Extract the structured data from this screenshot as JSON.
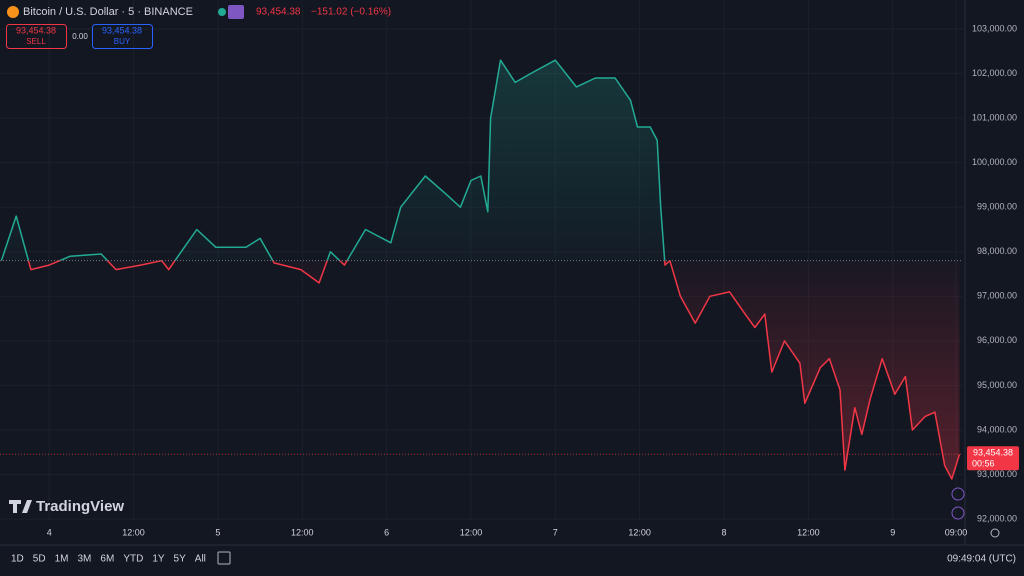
{
  "header": {
    "symbol": "Bitcoin / U.S. Dollar · 5 · BINANCE",
    "last": "93,454.38",
    "change": "−151.02 (−0.16%)"
  },
  "trade": {
    "sell_price": "93,454.38",
    "sell": "SELL",
    "spread": "0.00",
    "buy_price": "93,454.38",
    "buy": "BUY"
  },
  "logo": "TradingView",
  "toolbar": {
    "ranges": [
      "1D",
      "5D",
      "1M",
      "3M",
      "6M",
      "YTD",
      "1Y",
      "5Y",
      "All"
    ],
    "clock": "09:49:04 (UTC)"
  },
  "chart_data": {
    "type": "line",
    "x": [
      -6.8,
      -4.7,
      -2.6,
      0,
      3,
      7.4,
      9.5,
      13,
      16,
      17,
      21,
      23.7,
      28,
      30,
      32,
      35.8,
      38.4,
      40,
      42,
      45,
      48.6,
      50,
      53.5,
      56.4,
      58.5,
      60,
      61.4,
      62.4,
      62.8,
      64.2,
      66.3,
      68.5,
      72,
      75,
      77.7,
      80.5,
      82.7,
      83.7,
      85.5,
      86.5,
      87,
      87.6,
      88.3,
      89.8,
      91.9,
      94,
      96.8,
      99,
      100.4,
      101.8,
      102.8,
      104.6,
      106.8,
      107.5,
      109.7,
      111,
      112.5,
      113.2,
      114.6,
      115.6,
      116.8,
      118.5,
      120.3,
      121.8,
      122.8,
      124.6,
      126,
      127.4,
      128.4,
      129.5
    ],
    "values": [
      97800,
      98800,
      97600,
      97700,
      97900,
      97950,
      97600,
      97700,
      97800,
      97600,
      98500,
      98100,
      98100,
      98300,
      97750,
      97600,
      97300,
      98000,
      97700,
      98500,
      98200,
      99000,
      99700,
      99300,
      99000,
      99600,
      99700,
      98900,
      101000,
      102300,
      101800,
      102000,
      102300,
      101700,
      101900,
      101900,
      101400,
      100800,
      100800,
      100500,
      99000,
      97700,
      97800,
      97000,
      96400,
      97000,
      97100,
      96600,
      96300,
      96600,
      95300,
      96000,
      95500,
      94600,
      95400,
      95600,
      94900,
      93100,
      94500,
      93900,
      94700,
      95600,
      94800,
      95200,
      94000,
      94300,
      94400,
      93200,
      92900,
      93454.38
    ],
    "baseline": 97800,
    "last_value": 93454.38,
    "last_label": "93,454.38",
    "countdown": "00:56",
    "up_color": "#22ab94",
    "down_color": "#f23645",
    "xlim": [
      -7,
      130
    ],
    "xticks": [
      {
        "value": 0,
        "label": "4"
      },
      {
        "value": 12,
        "label": "12:00"
      },
      {
        "value": 24,
        "label": "5"
      },
      {
        "value": 36,
        "label": "12:00"
      },
      {
        "value": 48,
        "label": "6"
      },
      {
        "value": 60,
        "label": "12:00"
      },
      {
        "value": 72,
        "label": "7"
      },
      {
        "value": 84,
        "label": "12:00"
      },
      {
        "value": 96,
        "label": "8"
      },
      {
        "value": 108,
        "label": "12:00"
      },
      {
        "value": 120,
        "label": "9"
      },
      {
        "value": 129,
        "label": "09:00"
      }
    ],
    "ylim": [
      91980,
      103650
    ],
    "yticks": [
      {
        "value": 92000,
        "label": "92,000.00"
      },
      {
        "value": 93000,
        "label": "93,000.00"
      },
      {
        "value": 94000,
        "label": "94,000.00"
      },
      {
        "value": 95000,
        "label": "95,000.00"
      },
      {
        "value": 96000,
        "label": "96,000.00"
      },
      {
        "value": 97000,
        "label": "97,000.00"
      },
      {
        "value": 98000,
        "label": "98,000.00"
      },
      {
        "value": 99000,
        "label": "99,000.00"
      },
      {
        "value": 100000,
        "label": "100,000.00"
      },
      {
        "value": 101000,
        "label": "101,000.00"
      },
      {
        "value": 102000,
        "label": "102,000.00"
      },
      {
        "value": 103000,
        "label": "103,000.00"
      }
    ],
    "grid": true
  }
}
